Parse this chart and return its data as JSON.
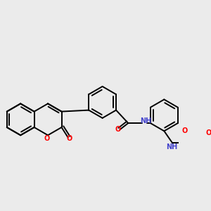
{
  "background_color": "#ebebeb",
  "line_color": "#000000",
  "bond_lw": 1.4,
  "figsize": [
    3.0,
    3.0
  ],
  "dpi": 100,
  "xlim": [
    -1.0,
    8.5
  ],
  "ylim": [
    -2.0,
    3.5
  ]
}
